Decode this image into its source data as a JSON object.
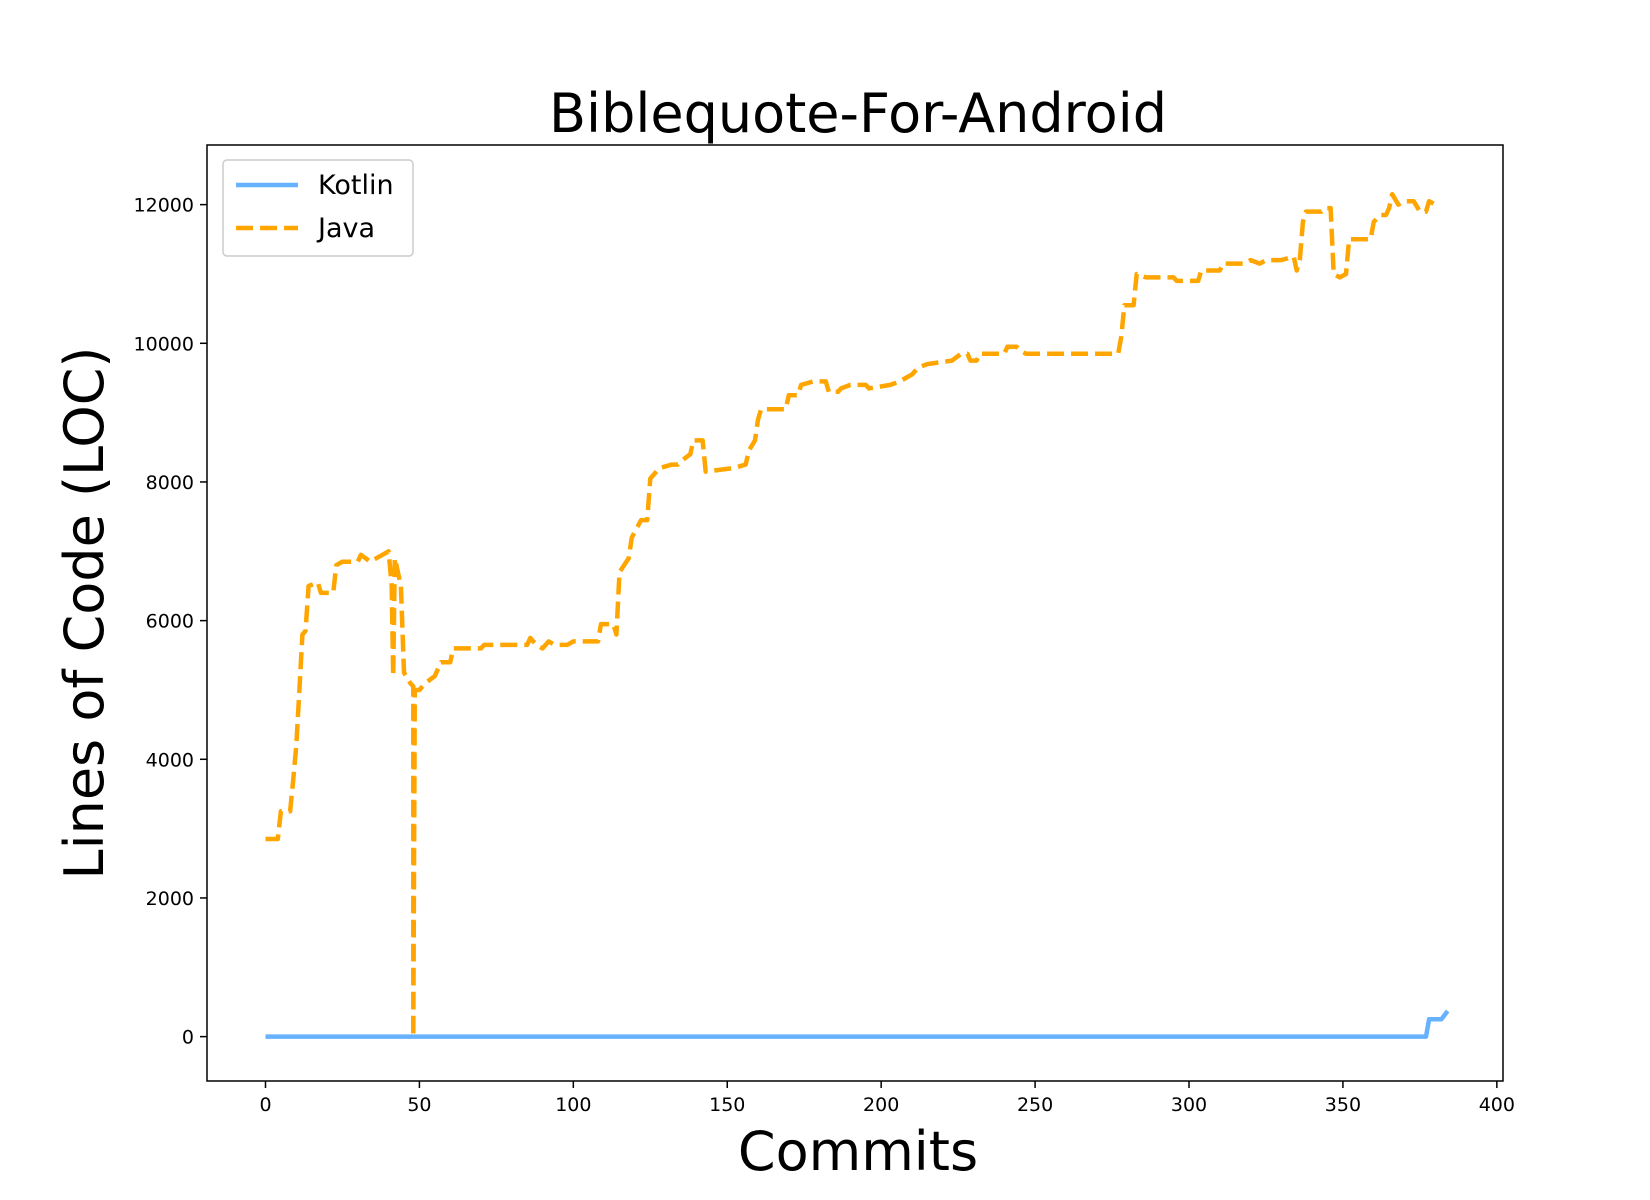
{
  "chart_data": {
    "type": "line",
    "title": "Biblequote-For-Android",
    "xlabel": "Commits",
    "ylabel": "Lines of Code (LOC)",
    "xlim": [
      -19,
      402
    ],
    "ylim": [
      -640,
      12860
    ],
    "xticks": [
      0,
      50,
      100,
      150,
      200,
      250,
      300,
      350,
      400
    ],
    "yticks": [
      0,
      2000,
      4000,
      6000,
      8000,
      10000,
      12000
    ],
    "grid": false,
    "legend_position": "top-left",
    "series": [
      {
        "name": "Kotlin",
        "color": "#66b2ff",
        "style": "solid",
        "points": [
          [
            0,
            0
          ],
          [
            377,
            0
          ],
          [
            378,
            250
          ],
          [
            382,
            250
          ],
          [
            384,
            370
          ]
        ]
      },
      {
        "name": "Java",
        "color": "#ffa500",
        "style": "dashed",
        "points": [
          [
            0,
            2850
          ],
          [
            4,
            2850
          ],
          [
            5,
            3250
          ],
          [
            8,
            3250
          ],
          [
            9,
            3700
          ],
          [
            10,
            4200
          ],
          [
            11,
            5000
          ],
          [
            12,
            5800
          ],
          [
            13,
            5850
          ],
          [
            14,
            6500
          ],
          [
            17,
            6550
          ],
          [
            18,
            6400
          ],
          [
            22,
            6400
          ],
          [
            23,
            6800
          ],
          [
            25,
            6850
          ],
          [
            30,
            6850
          ],
          [
            31,
            6950
          ],
          [
            34,
            6850
          ],
          [
            38,
            6950
          ],
          [
            40,
            7000
          ],
          [
            41,
            6500
          ],
          [
            41.5,
            5200
          ],
          [
            42,
            6900
          ],
          [
            43,
            6700
          ],
          [
            44,
            6500
          ],
          [
            45,
            5250
          ],
          [
            47,
            5100
          ],
          [
            48,
            5050
          ],
          [
            48,
            0
          ],
          [
            48.5,
            5000
          ],
          [
            50,
            5000
          ],
          [
            52,
            5100
          ],
          [
            55,
            5200
          ],
          [
            57,
            5400
          ],
          [
            60,
            5400
          ],
          [
            61,
            5600
          ],
          [
            70,
            5600
          ],
          [
            71,
            5650
          ],
          [
            85,
            5650
          ],
          [
            86,
            5750
          ],
          [
            88,
            5650
          ],
          [
            90,
            5600
          ],
          [
            92,
            5700
          ],
          [
            94,
            5650
          ],
          [
            98,
            5650
          ],
          [
            100,
            5700
          ],
          [
            108,
            5700
          ],
          [
            109,
            5950
          ],
          [
            113,
            5950
          ],
          [
            114,
            5800
          ],
          [
            115,
            6700
          ],
          [
            118,
            6900
          ],
          [
            119,
            7200
          ],
          [
            122,
            7450
          ],
          [
            124,
            7450
          ],
          [
            125,
            8050
          ],
          [
            128,
            8200
          ],
          [
            132,
            8250
          ],
          [
            134,
            8250
          ],
          [
            135,
            8300
          ],
          [
            138,
            8400
          ],
          [
            139,
            8600
          ],
          [
            142,
            8600
          ],
          [
            143,
            8150
          ],
          [
            152,
            8200
          ],
          [
            156,
            8250
          ],
          [
            157,
            8450
          ],
          [
            159,
            8600
          ],
          [
            160,
            8900
          ],
          [
            161,
            9050
          ],
          [
            168,
            9050
          ],
          [
            169,
            9050
          ],
          [
            170,
            9250
          ],
          [
            173,
            9250
          ],
          [
            174,
            9400
          ],
          [
            178,
            9450
          ],
          [
            182,
            9450
          ],
          [
            183,
            9300
          ],
          [
            186,
            9300
          ],
          [
            187,
            9350
          ],
          [
            190,
            9400
          ],
          [
            195,
            9400
          ],
          [
            196,
            9350
          ],
          [
            203,
            9400
          ],
          [
            206,
            9450
          ],
          [
            210,
            9550
          ],
          [
            212,
            9650
          ],
          [
            215,
            9700
          ],
          [
            223,
            9750
          ],
          [
            226,
            9850
          ],
          [
            228,
            9850
          ],
          [
            229,
            9750
          ],
          [
            231,
            9750
          ],
          [
            232,
            9850
          ],
          [
            240,
            9850
          ],
          [
            241,
            9950
          ],
          [
            244,
            9950
          ],
          [
            245,
            9900
          ],
          [
            247,
            9850
          ],
          [
            260,
            9850
          ],
          [
            262,
            9850
          ],
          [
            277,
            9850
          ],
          [
            278,
            10100
          ],
          [
            279,
            10550
          ],
          [
            282,
            10550
          ],
          [
            283,
            11000
          ],
          [
            286,
            10950
          ],
          [
            295,
            10950
          ],
          [
            296,
            10900
          ],
          [
            303,
            10900
          ],
          [
            304,
            11050
          ],
          [
            310,
            11050
          ],
          [
            311,
            11150
          ],
          [
            318,
            11150
          ],
          [
            320,
            11200
          ],
          [
            323,
            11150
          ],
          [
            325,
            11200
          ],
          [
            330,
            11200
          ],
          [
            334,
            11250
          ],
          [
            335,
            11050
          ],
          [
            336,
            11200
          ],
          [
            337,
            11750
          ],
          [
            338,
            11900
          ],
          [
            343,
            11900
          ],
          [
            344,
            11950
          ],
          [
            346,
            11950
          ],
          [
            347,
            11000
          ],
          [
            349,
            10950
          ],
          [
            351,
            11000
          ],
          [
            352,
            11500
          ],
          [
            359,
            11500
          ],
          [
            360,
            11750
          ],
          [
            362,
            11850
          ],
          [
            364,
            11850
          ],
          [
            365,
            11950
          ],
          [
            366,
            12150
          ],
          [
            368,
            12000
          ],
          [
            370,
            12050
          ],
          [
            373,
            12050
          ],
          [
            375,
            11900
          ],
          [
            377,
            11900
          ],
          [
            378,
            12050
          ],
          [
            380,
            12000
          ]
        ]
      }
    ]
  }
}
